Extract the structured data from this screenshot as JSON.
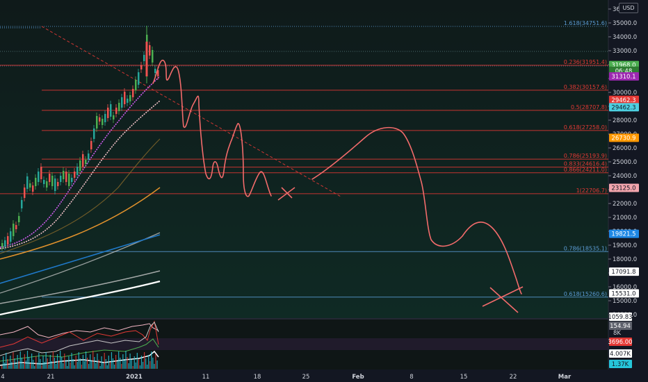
{
  "header": {
    "currency": "USD"
  },
  "colors": {
    "background": "#131722",
    "fib_red": "#e53935",
    "fib_blue": "#5b9bd5",
    "drawing": "#f26b6b",
    "candle_up": "#26a69a",
    "candle_up_alt": "#4caf50",
    "candle_down": "#ef5350",
    "ma_purple": "#d05bf0",
    "ma_pink": "#f3c2c8",
    "ma_orange": "#e0912c",
    "ma_blue": "#1f78c8",
    "ma_grey": "#c8c8c8",
    "ma_white": "#ffffff"
  },
  "chart_data": {
    "type": "candlestick",
    "symbol_currency": "USD",
    "price_scale": {
      "ylim": [
        13500,
        36200
      ],
      "ticks": [
        "36000.0",
        "35000.0",
        "34000.0",
        "33000.0",
        "32000.0",
        "31000.0",
        "30000.0",
        "29000.0",
        "28000.0",
        "27000.0",
        "26000.0",
        "25000.0",
        "24000.0",
        "23000.0",
        "22000.0",
        "21000.0",
        "20000.0",
        "19000.0",
        "18000.0",
        "17000.0",
        "16000.0",
        "15000.0",
        "14000.0"
      ]
    },
    "time_scale": {
      "labels": [
        "4",
        "21",
        "2021",
        "11",
        "18",
        "25",
        "Feb",
        "8",
        "15",
        "22",
        "Mar"
      ]
    },
    "fib_levels": [
      {
        "label": "1.618(34751.6)",
        "price": 34751.6,
        "color": "blue"
      },
      {
        "label": "0.236(31951.4)",
        "price": 31951.4,
        "color": "red"
      },
      {
        "label": "0.382(30157.6)",
        "price": 30157.6,
        "color": "red"
      },
      {
        "label": "0.5(28707.8)",
        "price": 28707.8,
        "color": "red"
      },
      {
        "label": "0.618(27258.0)",
        "price": 27258.0,
        "color": "red"
      },
      {
        "label": "0.786(25193.9)",
        "price": 25193.9,
        "color": "red"
      },
      {
        "label": "0.833(24616.4)",
        "price": 24616.4,
        "color": "red"
      },
      {
        "label": "0.866(24211.0)",
        "price": 24211.0,
        "color": "red"
      },
      {
        "label": "1(22706.7)",
        "price": 22706.7,
        "color": "red"
      },
      {
        "label": "0.786(18535.1)",
        "price": 18535.1,
        "color": "blue"
      },
      {
        "label": "0.618(15260.6)",
        "price": 15260.6,
        "color": "blue"
      }
    ],
    "price_tags": [
      {
        "label": "31968.0",
        "price": 31968,
        "color": "#4caf50"
      },
      {
        "label": "06:48",
        "price": 31560,
        "color": "#2e7d32"
      },
      {
        "label": "31310.1",
        "price": 31150,
        "color": "#9c27b0"
      },
      {
        "label": "29462.3",
        "price": 29462.3,
        "color": "#e53935"
      },
      {
        "label": "29462.3",
        "price": 28930,
        "color": "#4dd0e1"
      },
      {
        "label": "26730.9",
        "price": 26730.9,
        "color": "#ff9800"
      },
      {
        "label": "23125.0",
        "price": 23125,
        "color": "#f3a5ad"
      },
      {
        "label": "19821.5",
        "price": 19821.5,
        "color": "#1e88e5"
      },
      {
        "label": "17091.8",
        "price": 17091.8,
        "color": "#ffffff"
      },
      {
        "label": "15531.0",
        "price": 15531,
        "color": "#ffffff"
      }
    ],
    "indicator_scale": {
      "labels": [
        "1059.83",
        "154.94",
        "3696.00",
        "4.007K",
        "1.37K"
      ],
      "small_label": "8K"
    }
  }
}
